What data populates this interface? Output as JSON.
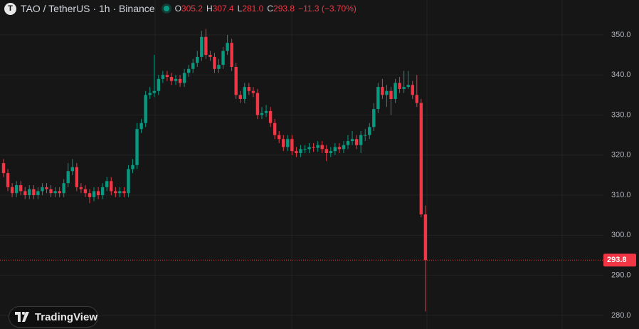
{
  "chart_data": {
    "type": "candlestick",
    "symbol": "TAO / TetherUS · 1h · Binance",
    "logo_letter": "T",
    "stats": [
      {
        "label": "O",
        "text": "305.2"
      },
      {
        "label": "H",
        "text": "307.4"
      },
      {
        "label": "L",
        "text": "281.0"
      },
      {
        "label": "C",
        "text": "293.8"
      }
    ],
    "change": "−11.3 (−3.70%)",
    "watermark": "TradingView",
    "up_color": "#089981",
    "down_color": "#f23645",
    "ylim": [
      276.6,
      358.7
    ],
    "yticks": [
      {
        "value": 280,
        "label": "280.0"
      },
      {
        "value": 290,
        "label": "290.0"
      },
      {
        "value": 300,
        "label": "300.0"
      },
      {
        "value": 310,
        "label": "310.0"
      },
      {
        "value": 320,
        "label": "320.0"
      },
      {
        "value": 330,
        "label": "330.0"
      },
      {
        "value": 340,
        "label": "340.0"
      },
      {
        "value": 350,
        "label": "350.0"
      }
    ],
    "grid": true,
    "open": [
      318,
      315.5,
      312,
      310.5,
      312.5,
      311,
      310,
      311.5,
      310,
      311,
      312,
      311.5,
      310.5,
      311,
      310.5,
      313,
      316,
      317,
      312,
      311.5,
      310.5,
      309.5,
      311,
      310,
      312,
      313.5,
      311,
      310.5,
      311,
      310.5,
      316.5,
      317.5,
      326.5,
      328,
      335,
      335.5,
      336,
      339,
      340,
      339.5,
      338.5,
      339,
      338,
      340.5,
      341.5,
      343,
      344.5,
      349.5,
      345,
      344.5,
      341.5,
      342.5,
      346,
      348,
      342,
      335,
      334,
      337,
      336,
      335.5,
      330,
      330.5,
      331,
      328,
      325,
      324,
      322,
      324,
      321,
      320.5,
      321.5,
      321.5,
      322,
      321.8,
      322.5,
      321.5,
      320.5,
      321,
      322,
      321.5,
      322.5,
      323.5,
      324,
      322.5,
      325,
      325,
      327,
      331.5,
      337,
      335,
      336,
      334,
      338,
      336.5,
      337,
      337.5,
      335,
      333,
      305.2
    ],
    "high": [
      319,
      316.5,
      313,
      313.5,
      313.5,
      312,
      312.5,
      312.5,
      312,
      313,
      313,
      312.5,
      312,
      312,
      314,
      318,
      319,
      318,
      313,
      312.5,
      311.5,
      312,
      312,
      313,
      314.5,
      314.5,
      312,
      312,
      312,
      317.5,
      319,
      328,
      329,
      336,
      337,
      345,
      340,
      341,
      341,
      340.5,
      340,
      340,
      341.5,
      342.5,
      344,
      346,
      351,
      351.5,
      346,
      345.5,
      344,
      347,
      350,
      349,
      343,
      336,
      338,
      338,
      337,
      336.5,
      332,
      332.5,
      332,
      329,
      326,
      325,
      325,
      325,
      322,
      322.5,
      322.5,
      323,
      323,
      323.5,
      323.5,
      322.5,
      322,
      323,
      323,
      323.5,
      325,
      326,
      325,
      326,
      326.5,
      328,
      333,
      338,
      339,
      337.5,
      337,
      339,
      339.5,
      341,
      341,
      338.5,
      340,
      334,
      307.4
    ],
    "low": [
      314.5,
      311,
      309.5,
      309.5,
      310,
      309,
      309,
      309,
      309,
      310,
      310.5,
      309.5,
      309.5,
      309.5,
      309.5,
      312,
      315,
      311,
      310.5,
      309.5,
      308,
      308.5,
      309,
      309,
      311,
      310,
      309.5,
      309.5,
      309.5,
      309.5,
      315.5,
      316.5,
      325.5,
      327,
      334,
      334.5,
      335,
      338,
      338.5,
      337.5,
      337.5,
      337,
      337,
      339.5,
      340.5,
      342,
      343.5,
      344,
      343.5,
      340.5,
      340.5,
      341.5,
      345,
      341,
      334,
      333,
      333,
      335,
      334.5,
      329,
      329,
      329.5,
      327,
      324,
      323,
      321,
      321,
      320,
      319.5,
      319.5,
      320.5,
      320.5,
      320.8,
      320.8,
      320.5,
      318.5,
      319.5,
      320,
      320.5,
      320.5,
      321.5,
      322.5,
      321.5,
      320.5,
      323.5,
      324,
      326,
      330.5,
      334,
      332,
      330,
      333,
      335.5,
      335.5,
      336.5,
      334,
      332,
      304.5,
      281
    ],
    "close": [
      315.5,
      312,
      310.5,
      312.5,
      311,
      310,
      311.5,
      310,
      311,
      312,
      311.5,
      310.5,
      311,
      310.5,
      313,
      316,
      317,
      312,
      311.5,
      310.5,
      309.5,
      311,
      310,
      312,
      313.5,
      311,
      310.5,
      311,
      310.5,
      316.5,
      317.5,
      326.5,
      328,
      335,
      335.5,
      336,
      339,
      340,
      339.5,
      338.5,
      339,
      338,
      340.5,
      341.5,
      343,
      344.5,
      349.5,
      345,
      344.5,
      341.5,
      342.5,
      346,
      348,
      342,
      335,
      334,
      337,
      336,
      335.5,
      330,
      330.5,
      331,
      328,
      325,
      324,
      322,
      324,
      321,
      320.5,
      321.5,
      321.5,
      322,
      321.8,
      322.5,
      321.5,
      320.5,
      321,
      322,
      321.5,
      322.5,
      323.5,
      324,
      322.5,
      325,
      325,
      327,
      331.5,
      337,
      335,
      336,
      334,
      338,
      336.5,
      337,
      337.5,
      335,
      333,
      305.2,
      293.8
    ]
  }
}
